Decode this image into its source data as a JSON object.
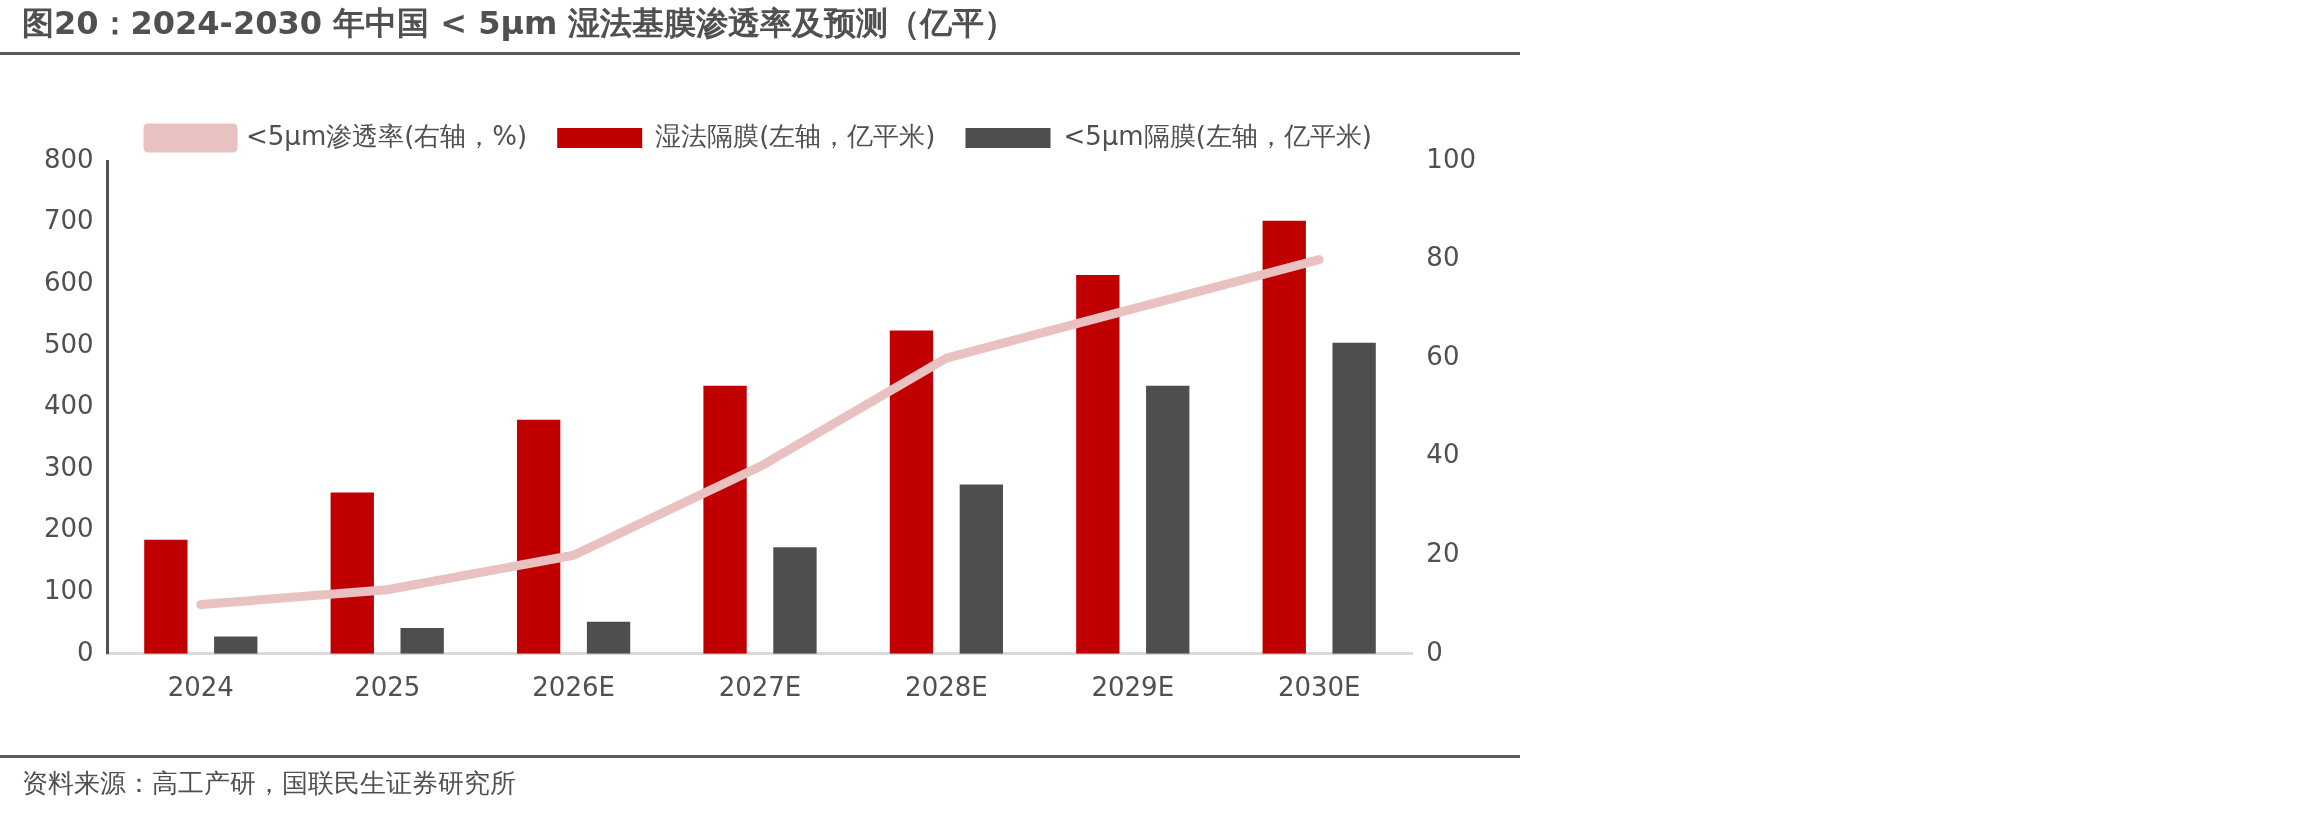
{
  "chart_data": {
    "type": "bar",
    "title": "图20：2024-2030 年中国 < 5μm 湿法基膜渗透率及预测（亿平）",
    "categories": [
      "2024",
      "2025",
      "2026E",
      "2027E",
      "2028E",
      "2029E",
      "2030E"
    ],
    "series": [
      {
        "name": "湿法隔膜(左轴，亿平米)",
        "color": "#c00000",
        "values": [
          185,
          262,
          380,
          435,
          525,
          615,
          703
        ]
      },
      {
        "name": "<5μm隔膜(左轴，亿平米)",
        "color": "#4d4e50",
        "values": [
          28,
          42,
          52,
          173,
          275,
          435,
          505
        ]
      },
      {
        "name": "<5μm渗透率(右轴，%)",
        "type": "line",
        "axis": "y2",
        "color": "#e9c1c1",
        "values": [
          10,
          13,
          20,
          38,
          60,
          70,
          80
        ]
      }
    ],
    "ylim": [
      0,
      800
    ],
    "yticks": [
      0,
      100,
      200,
      300,
      400,
      500,
      600,
      700,
      800
    ],
    "y2lim": [
      0,
      100
    ],
    "y2ticks": [
      0,
      20,
      40,
      60,
      80,
      100
    ],
    "grid": false,
    "legend": "top",
    "marker": "none",
    "annotations": [
      "资料来源：高工产研，国联民生证券研究所"
    ]
  }
}
